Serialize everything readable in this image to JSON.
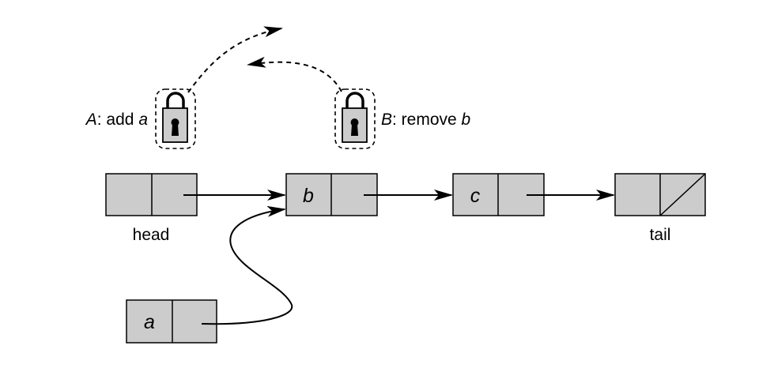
{
  "locks": [
    {
      "owner": "A",
      "action": ": add ",
      "target": "a"
    },
    {
      "owner": "B",
      "action": ": remove ",
      "target": "b"
    }
  ],
  "nodes": {
    "head": {
      "value": "",
      "caption": "head"
    },
    "b": {
      "value": "b",
      "caption": ""
    },
    "c": {
      "value": "c",
      "caption": ""
    },
    "tail": {
      "value": "",
      "caption": "tail"
    },
    "a": {
      "value": "a",
      "caption": ""
    }
  },
  "colors": {
    "node_fill": "#cccccc",
    "stroke": "#000000",
    "background": "#ffffff"
  },
  "icons": [
    "padlock-icon",
    "keyhole-icon"
  ]
}
